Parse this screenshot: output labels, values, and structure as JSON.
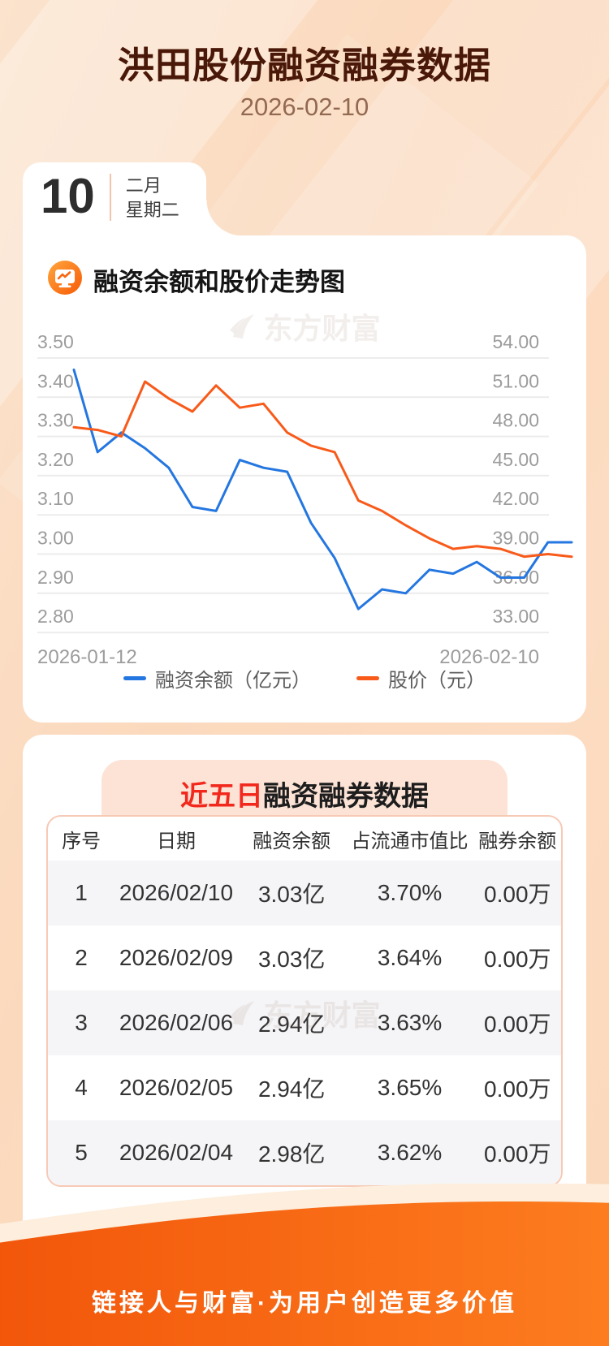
{
  "page": {
    "title": "洪田股份融资融券数据",
    "date": "2026-02-10",
    "calendar": {
      "day": "10",
      "month": "二月",
      "weekday": "星期二"
    },
    "watermark": "东方财富",
    "footer": "链接人与财富·为用户创造更多价值"
  },
  "chart_section": {
    "title": "融资余额和股价走势图"
  },
  "chart_data": {
    "type": "line",
    "title": "融资余额和股价走势图",
    "x": [
      "2026-01-12",
      "2026-01-13",
      "2026-01-14",
      "2026-01-15",
      "2026-01-16",
      "2026-01-19",
      "2026-01-20",
      "2026-01-21",
      "2026-01-22",
      "2026-01-23",
      "2026-01-26",
      "2026-01-27",
      "2026-01-28",
      "2026-01-29",
      "2026-01-30",
      "2026-02-02",
      "2026-02-03",
      "2026-02-04",
      "2026-02-05",
      "2026-02-06",
      "2026-02-09",
      "2026-02-10"
    ],
    "series": [
      {
        "name": "融资余额（亿元）",
        "color": "#2476e0",
        "axis": "left",
        "values": [
          3.47,
          3.26,
          3.31,
          3.27,
          3.22,
          3.12,
          3.11,
          3.24,
          3.22,
          3.21,
          3.08,
          2.99,
          2.86,
          2.91,
          2.9,
          2.96,
          2.95,
          2.98,
          2.94,
          2.94,
          3.03,
          3.03
        ]
      },
      {
        "name": "股价（元）",
        "color": "#f85a1a",
        "axis": "right",
        "values": [
          48.7,
          48.5,
          48.0,
          52.2,
          50.9,
          49.9,
          51.9,
          50.2,
          50.5,
          48.3,
          47.3,
          46.8,
          43.1,
          42.3,
          41.2,
          40.2,
          39.4,
          39.6,
          39.4,
          38.8,
          39.0,
          38.8
        ]
      }
    ],
    "left_axis": {
      "min": 2.8,
      "max": 3.5,
      "ticks": [
        "3.50",
        "3.40",
        "3.30",
        "3.20",
        "3.10",
        "3.00",
        "2.90",
        "2.80"
      ]
    },
    "right_axis": {
      "min": 33.0,
      "max": 54.0,
      "ticks": [
        "54.00",
        "51.00",
        "48.00",
        "45.00",
        "42.00",
        "39.00",
        "36.00",
        "33.00"
      ]
    },
    "x_labels": [
      "2026-01-12",
      "2026-02-10"
    ],
    "grid": true,
    "legend_position": "bottom"
  },
  "table_section": {
    "title_prefix": "近五日",
    "title_rest": "融资融券数据",
    "columns": [
      "序号",
      "日期",
      "融资余额",
      "占流通市值比",
      "融券余额"
    ],
    "rows": [
      [
        "1",
        "2026/02/10",
        "3.03亿",
        "3.70%",
        "0.00万"
      ],
      [
        "2",
        "2026/02/09",
        "3.03亿",
        "3.64%",
        "0.00万"
      ],
      [
        "3",
        "2026/02/06",
        "2.94亿",
        "3.63%",
        "0.00万"
      ],
      [
        "4",
        "2026/02/05",
        "2.94亿",
        "3.65%",
        "0.00万"
      ],
      [
        "5",
        "2026/02/04",
        "2.98亿",
        "3.62%",
        "0.00万"
      ]
    ]
  },
  "colors": {
    "blue_series": "#2476e0",
    "orange_series": "#f85a1a",
    "axis_label": "#9c9c9c",
    "gridline": "#ececec",
    "footer_orange_dark": "#f2560a",
    "footer_orange_light": "#fd7d1f",
    "banner_bg": "#fce3d6",
    "banner_red": "#f3281d",
    "title_brown": "#4a1808"
  }
}
